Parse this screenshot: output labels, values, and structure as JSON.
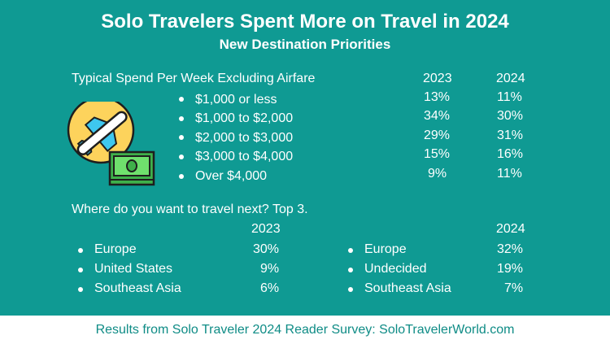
{
  "title": "Solo Travelers Spent More on Travel in 2024",
  "subtitle": "New Destination Priorities",
  "spend": {
    "heading": "Typical Spend Per Week Excluding Airfare",
    "years": [
      "2023",
      "2024"
    ],
    "rows": [
      {
        "label": "$1,000 or less",
        "v2023": "13%",
        "v2024": "11%"
      },
      {
        "label": "$1,000 to $2,000",
        "v2023": "34%",
        "v2024": "30%"
      },
      {
        "label": "$2,000 to $3,000",
        "v2023": "29%",
        "v2024": "31%"
      },
      {
        "label": "$3,000 to $4,000",
        "v2023": "15%",
        "v2024": "16%"
      },
      {
        "label": "Over $4,000",
        "v2023": "9%",
        "v2024": "11%"
      }
    ]
  },
  "destinations": {
    "heading": "Where do you want to travel next? Top 3.",
    "y2023": {
      "year": "2023",
      "rows": [
        {
          "label": "Europe",
          "value": "30%"
        },
        {
          "label": "United States",
          "value": "9%"
        },
        {
          "label": "Southeast Asia",
          "value": "6%"
        }
      ]
    },
    "y2024": {
      "year": "2024",
      "rows": [
        {
          "label": "Europe",
          "value": "32%"
        },
        {
          "label": "Undecided",
          "value": "19%"
        },
        {
          "label": "Southeast Asia",
          "value": "7%"
        }
      ]
    }
  },
  "footer": "Results from Solo Traveler 2024 Reader Survey: SoloTravelerWorld.com",
  "colors": {
    "background": "#0f9a93",
    "footer_text": "#0f8c86"
  },
  "icons": {
    "illustration": "airplane-and-money-icon"
  }
}
